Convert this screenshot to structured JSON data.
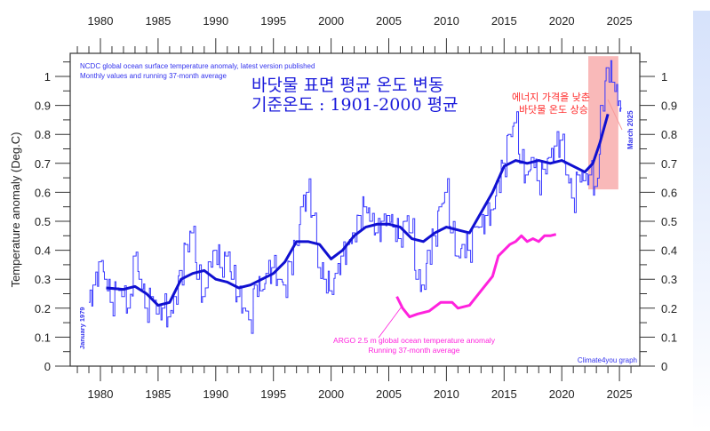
{
  "chart_data": {
    "type": "line",
    "ylabel": "Temperature anomaly (Deg.C)",
    "xlim": [
      1977.5,
      2027
    ],
    "ylim": [
      0,
      1.05
    ],
    "x_ticks": [
      1980,
      1985,
      1990,
      1995,
      2000,
      2005,
      2010,
      2015,
      2020,
      2025
    ],
    "y_ticks": [
      0,
      0.1,
      0.2,
      0.3,
      0.4,
      0.5,
      0.6,
      0.7,
      0.8,
      0.9,
      1
    ],
    "y_tick_labels": [
      "0",
      "0.1",
      "0.2",
      "0.3",
      "0.4",
      "0.5",
      "0.6",
      "0.7",
      "0.8",
      "0.9",
      "1"
    ],
    "notes": {
      "source_line1": "NCDC global ocean surface temperature anomaly, latest version published",
      "source_line2": "Monthly values and running 37-month average",
      "title_kr_1": "바닷물 표면 평균 온도 변동",
      "title_kr_2": "기준온도 : 1901-2000 평균",
      "red_1": "에너지 가격을 낮춘",
      "red_2": "바닷물 온도 상승",
      "start_label": "January 1979",
      "end_label": "March 2025",
      "argo_1": "ARGO 2.5 m global ocean temperature anomaly",
      "argo_2": "Running 37-month average",
      "credit": "Climate4you graph"
    },
    "highlight": {
      "x": [
        2022.3,
        2024.9
      ],
      "y": [
        0.61,
        1.07
      ],
      "color": "#f7a8a8"
    },
    "colors": {
      "monthly": "#3a3aff",
      "running": "#1010d0",
      "argo": "#ff22dd"
    },
    "series": [
      {
        "key": "monthly",
        "points": [
          [
            1979.0,
            0.22
          ],
          [
            1979.5,
            0.28
          ],
          [
            1980.0,
            0.36
          ],
          [
            1980.5,
            0.3
          ],
          [
            1981.0,
            0.22
          ],
          [
            1981.5,
            0.27
          ],
          [
            1982.0,
            0.24
          ],
          [
            1982.5,
            0.2
          ],
          [
            1983.0,
            0.38
          ],
          [
            1983.5,
            0.3
          ],
          [
            1984.0,
            0.2
          ],
          [
            1984.5,
            0.24
          ],
          [
            1985.0,
            0.18
          ],
          [
            1985.5,
            0.2
          ],
          [
            1986.0,
            0.17
          ],
          [
            1986.5,
            0.24
          ],
          [
            1987.0,
            0.33
          ],
          [
            1987.5,
            0.42
          ],
          [
            1988.0,
            0.46
          ],
          [
            1988.5,
            0.3
          ],
          [
            1989.0,
            0.24
          ],
          [
            1989.5,
            0.36
          ],
          [
            1990.0,
            0.4
          ],
          [
            1990.5,
            0.34
          ],
          [
            1991.0,
            0.38
          ],
          [
            1991.5,
            0.3
          ],
          [
            1992.0,
            0.24
          ],
          [
            1992.5,
            0.2
          ],
          [
            1993.0,
            0.16
          ],
          [
            1993.5,
            0.28
          ],
          [
            1994.0,
            0.26
          ],
          [
            1994.5,
            0.32
          ],
          [
            1995.0,
            0.34
          ],
          [
            1995.5,
            0.3
          ],
          [
            1996.0,
            0.28
          ],
          [
            1996.5,
            0.36
          ],
          [
            1997.0,
            0.42
          ],
          [
            1997.5,
            0.55
          ],
          [
            1998.0,
            0.6
          ],
          [
            1998.5,
            0.52
          ],
          [
            1999.0,
            0.34
          ],
          [
            1999.5,
            0.3
          ],
          [
            2000.0,
            0.26
          ],
          [
            2000.5,
            0.32
          ],
          [
            2001.0,
            0.38
          ],
          [
            2001.5,
            0.42
          ],
          [
            2002.0,
            0.46
          ],
          [
            2002.5,
            0.52
          ],
          [
            2003.0,
            0.55
          ],
          [
            2003.5,
            0.5
          ],
          [
            2004.0,
            0.46
          ],
          [
            2004.5,
            0.5
          ],
          [
            2005.0,
            0.52
          ],
          [
            2005.5,
            0.48
          ],
          [
            2006.0,
            0.44
          ],
          [
            2006.5,
            0.5
          ],
          [
            2007.0,
            0.46
          ],
          [
            2007.5,
            0.3
          ],
          [
            2008.0,
            0.28
          ],
          [
            2008.5,
            0.4
          ],
          [
            2009.0,
            0.45
          ],
          [
            2009.5,
            0.55
          ],
          [
            2010.0,
            0.6
          ],
          [
            2010.5,
            0.46
          ],
          [
            2011.0,
            0.38
          ],
          [
            2011.5,
            0.42
          ],
          [
            2012.0,
            0.4
          ],
          [
            2012.5,
            0.48
          ],
          [
            2013.0,
            0.48
          ],
          [
            2013.5,
            0.52
          ],
          [
            2014.0,
            0.54
          ],
          [
            2014.5,
            0.64
          ],
          [
            2015.0,
            0.7
          ],
          [
            2015.5,
            0.8
          ],
          [
            2016.0,
            0.84
          ],
          [
            2016.5,
            0.7
          ],
          [
            2017.0,
            0.66
          ],
          [
            2017.5,
            0.72
          ],
          [
            2018.0,
            0.64
          ],
          [
            2018.5,
            0.68
          ],
          [
            2019.0,
            0.72
          ],
          [
            2019.5,
            0.76
          ],
          [
            2020.0,
            0.78
          ],
          [
            2020.5,
            0.66
          ],
          [
            2021.0,
            0.58
          ],
          [
            2021.5,
            0.66
          ],
          [
            2022.0,
            0.64
          ],
          [
            2022.5,
            0.66
          ],
          [
            2023.0,
            0.62
          ],
          [
            2023.5,
            0.9
          ],
          [
            2024.0,
            1.03
          ],
          [
            2024.5,
            0.98
          ],
          [
            2025.0,
            0.9
          ],
          [
            2025.2,
            0.89
          ]
        ]
      },
      {
        "key": "running",
        "points": [
          [
            1980.5,
            0.27
          ],
          [
            1982,
            0.265
          ],
          [
            1983,
            0.275
          ],
          [
            1984,
            0.25
          ],
          [
            1985,
            0.21
          ],
          [
            1986,
            0.22
          ],
          [
            1987,
            0.3
          ],
          [
            1988,
            0.32
          ],
          [
            1989,
            0.33
          ],
          [
            1990,
            0.3
          ],
          [
            1991,
            0.29
          ],
          [
            1992,
            0.27
          ],
          [
            1993,
            0.28
          ],
          [
            1994,
            0.3
          ],
          [
            1995,
            0.32
          ],
          [
            1996,
            0.36
          ],
          [
            1997,
            0.43
          ],
          [
            1998,
            0.43
          ],
          [
            1999,
            0.42
          ],
          [
            2000,
            0.37
          ],
          [
            2001,
            0.4
          ],
          [
            2002,
            0.45
          ],
          [
            2003,
            0.48
          ],
          [
            2004,
            0.49
          ],
          [
            2005,
            0.49
          ],
          [
            2006,
            0.48
          ],
          [
            2007,
            0.44
          ],
          [
            2008,
            0.43
          ],
          [
            2009,
            0.46
          ],
          [
            2010,
            0.48
          ],
          [
            2011,
            0.47
          ],
          [
            2012,
            0.46
          ],
          [
            2013,
            0.53
          ],
          [
            2014,
            0.6
          ],
          [
            2015,
            0.69
          ],
          [
            2016,
            0.71
          ],
          [
            2017,
            0.7
          ],
          [
            2018,
            0.71
          ],
          [
            2019,
            0.7
          ],
          [
            2020,
            0.71
          ],
          [
            2021,
            0.69
          ],
          [
            2022,
            0.67
          ],
          [
            2022.7,
            0.7
          ],
          [
            2023.3,
            0.77
          ],
          [
            2024.0,
            0.87
          ]
        ]
      },
      {
        "key": "argo",
        "points": [
          [
            2005.7,
            0.24
          ],
          [
            2006.2,
            0.2
          ],
          [
            2006.8,
            0.17
          ],
          [
            2007.5,
            0.18
          ],
          [
            2008.5,
            0.19
          ],
          [
            2009.5,
            0.22
          ],
          [
            2010.5,
            0.22
          ],
          [
            2011.0,
            0.2
          ],
          [
            2012.0,
            0.21
          ],
          [
            2013.0,
            0.26
          ],
          [
            2014.0,
            0.31
          ],
          [
            2014.5,
            0.38
          ],
          [
            2015.0,
            0.4
          ],
          [
            2015.5,
            0.42
          ],
          [
            2016.0,
            0.43
          ],
          [
            2016.5,
            0.45
          ],
          [
            2017.0,
            0.43
          ],
          [
            2017.5,
            0.44
          ],
          [
            2018.0,
            0.43
          ],
          [
            2018.5,
            0.45
          ],
          [
            2019.0,
            0.45
          ],
          [
            2019.5,
            0.455
          ]
        ]
      }
    ]
  }
}
